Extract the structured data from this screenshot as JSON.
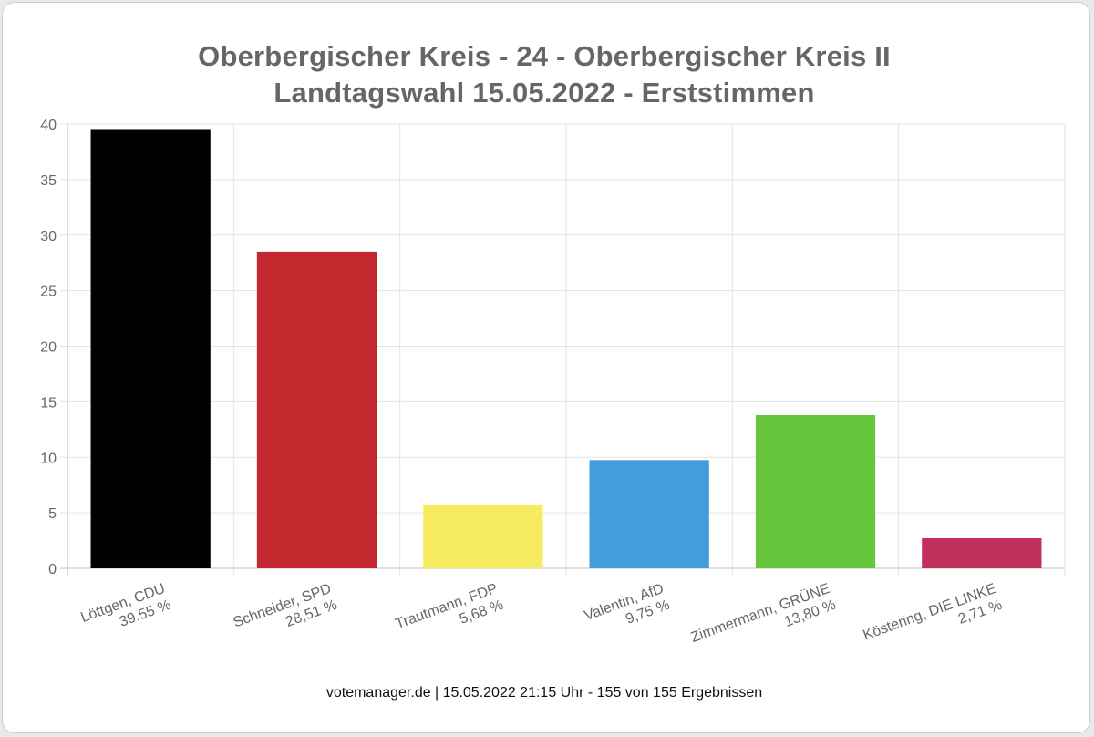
{
  "title_line1": "Oberbergischer Kreis - 24 - Oberbergischer Kreis II",
  "title_line2": "Landtagswahl 15.05.2022  - Erststimmen",
  "footer": "votemanager.de | 15.05.2022 21:15 Uhr - 155 von 155 Ergebnissen",
  "chart_data": {
    "type": "bar",
    "title": "Oberbergischer Kreis - 24 - Oberbergischer Kreis II",
    "subtitle": "Landtagswahl 15.05.2022  - Erststimmen",
    "xlabel": "",
    "ylabel": "",
    "ylim": [
      0,
      40
    ],
    "yticks": [
      0,
      5,
      10,
      15,
      20,
      25,
      30,
      35,
      40
    ],
    "grid": true,
    "categories": [
      {
        "name": "Löttgen, CDU",
        "value_label": "39,55 %"
      },
      {
        "name": "Schneider, SPD",
        "value_label": "28,51 %"
      },
      {
        "name": "Trautmann, FDP",
        "value_label": "5,68 %"
      },
      {
        "name": "Valentin, AfD",
        "value_label": "9,75 %"
      },
      {
        "name": "Zimmermann, GRÜNE",
        "value_label": "13,80 %"
      },
      {
        "name": "Köstering, DIE LINKE",
        "value_label": "2,71 %"
      }
    ],
    "values": [
      39.55,
      28.51,
      5.68,
      9.75,
      13.8,
      2.71
    ],
    "colors": [
      "#000000",
      "#c4282f",
      "#f7ec5f",
      "#449ddb",
      "#67c63e",
      "#c1305a"
    ]
  }
}
